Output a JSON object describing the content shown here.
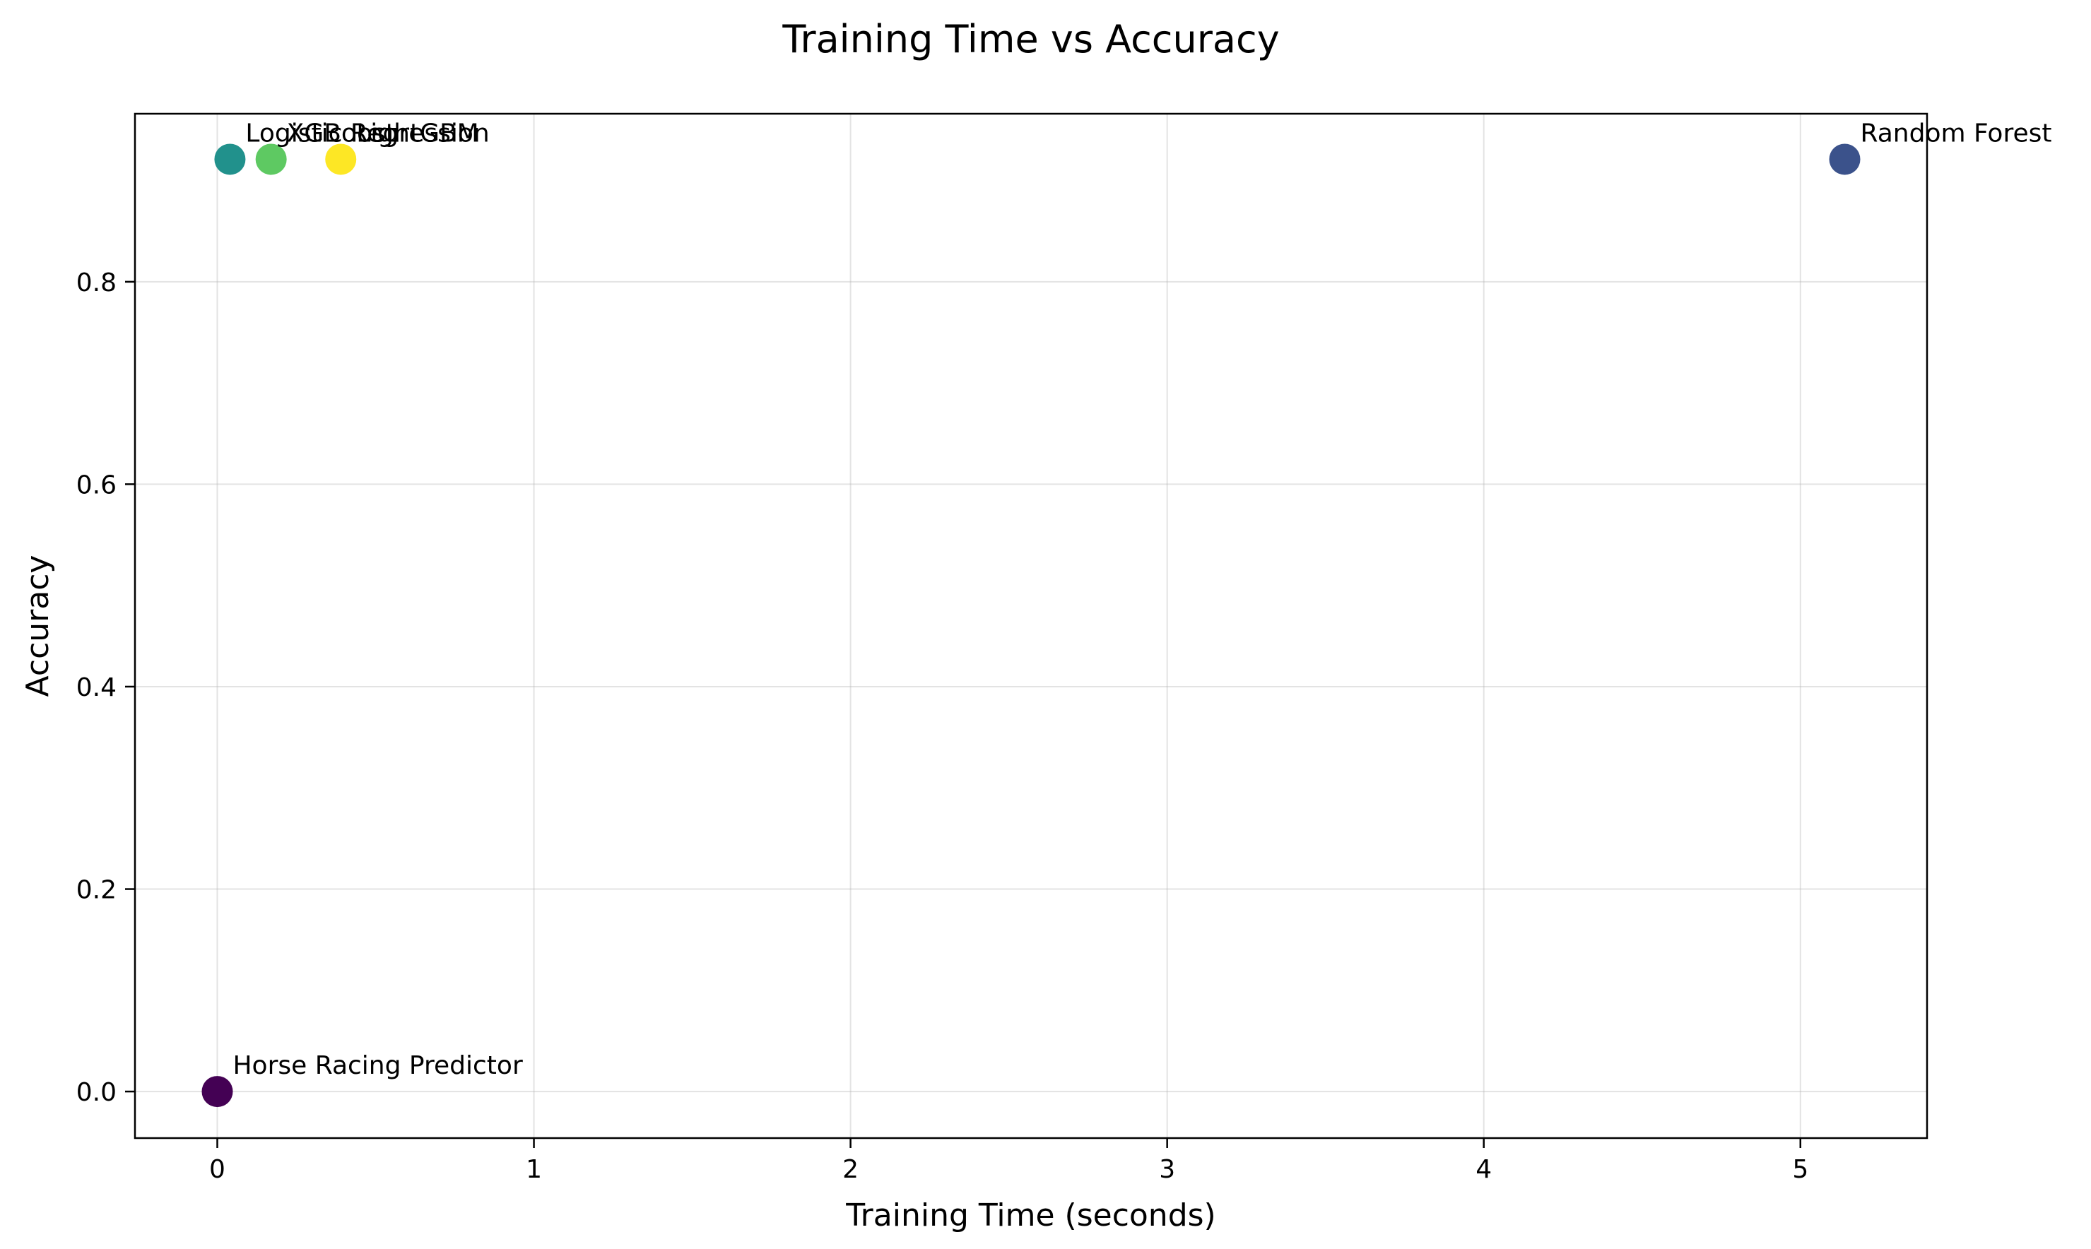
{
  "chart_data": {
    "type": "scatter",
    "title": "Training Time vs Accuracy",
    "xlabel": "Training Time (seconds)",
    "ylabel": "Accuracy",
    "xlim": [
      -0.26,
      5.4
    ],
    "ylim": [
      -0.046,
      0.966
    ],
    "xticks": [
      0,
      1,
      2,
      3,
      4,
      5
    ],
    "xtick_labels": [
      "0",
      "1",
      "2",
      "3",
      "4",
      "5"
    ],
    "yticks": [
      0.0,
      0.2,
      0.4,
      0.6,
      0.8
    ],
    "ytick_labels": [
      "0.0",
      "0.2",
      "0.4",
      "0.6",
      "0.8"
    ],
    "grid": true,
    "legend": "none",
    "points": [
      {
        "label": "Horse Racing Predictor",
        "x": 0.0,
        "y": 0.0,
        "color": "#440154"
      },
      {
        "label": "Random Forest",
        "x": 5.14,
        "y": 0.921,
        "color": "#3b528b"
      },
      {
        "label": "Logistic Regression",
        "x": 0.04,
        "y": 0.921,
        "color": "#21918c"
      },
      {
        "label": "XGBoost",
        "x": 0.17,
        "y": 0.921,
        "color": "#5ec962"
      },
      {
        "label": "LightGBM",
        "x": 0.39,
        "y": 0.921,
        "color": "#fde725"
      }
    ]
  }
}
